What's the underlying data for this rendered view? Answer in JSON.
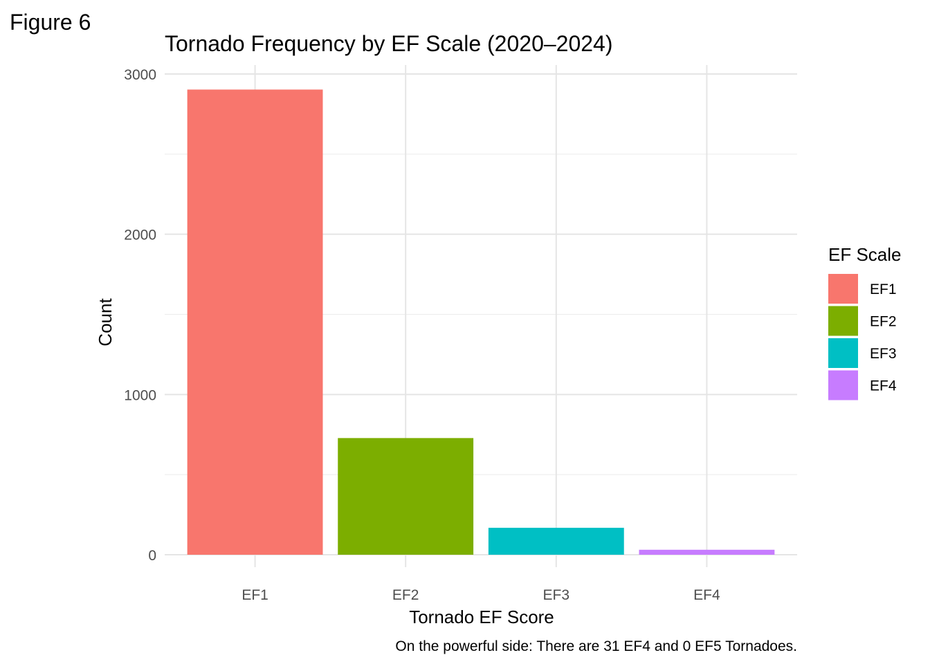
{
  "figure_label": "Figure 6",
  "chart_data": {
    "type": "bar",
    "title": "Tornado Frequency by EF Scale (2020–2024)",
    "xlabel": "Tornado EF Score",
    "ylabel": "Count",
    "caption": "On the powerful side: There are 31 EF4 and 0 EF5 Tornadoes.",
    "categories": [
      "EF1",
      "EF2",
      "EF3",
      "EF4"
    ],
    "values": [
      2903,
      728,
      168,
      31
    ],
    "colors": [
      "#F8766D",
      "#7CAE00",
      "#00BFC4",
      "#C77CFF"
    ],
    "ylim": [
      0,
      3000
    ],
    "yticks": [
      0,
      1000,
      2000,
      3000
    ],
    "grid": true,
    "legend": {
      "title": "EF Scale",
      "placement": "right",
      "entries": [
        "EF1",
        "EF2",
        "EF3",
        "EF4"
      ]
    }
  }
}
